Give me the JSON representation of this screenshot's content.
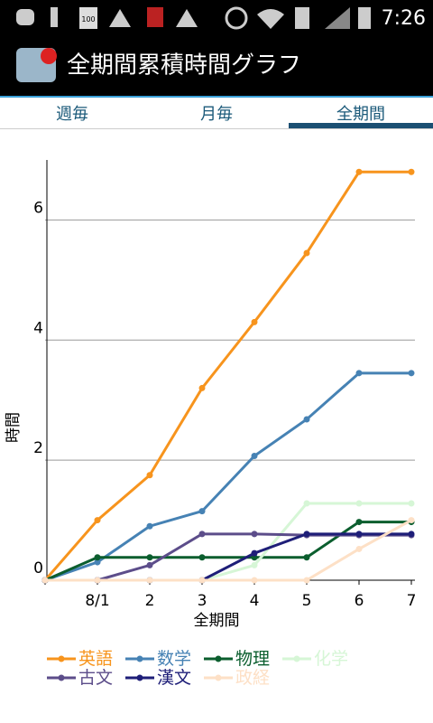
{
  "status": {
    "battery": "100",
    "time": "7:26"
  },
  "app_bar": {
    "title": "全期間累積時間グラフ"
  },
  "tabs": [
    "週毎",
    "月毎",
    "全期間"
  ],
  "chart_data": {
    "type": "line",
    "categories": [
      null,
      "8/1",
      "2",
      "3",
      "4",
      "5",
      "6",
      "7"
    ],
    "xlabel": "全期間",
    "ylabel": "時間",
    "ylim": [
      0,
      7
    ],
    "yticks": [
      0,
      2,
      4,
      6
    ],
    "grid": true,
    "series": [
      {
        "name": "英語",
        "color": "#f7941d",
        "values": [
          0,
          1.0,
          1.75,
          3.2,
          4.3,
          5.45,
          6.8,
          6.8
        ]
      },
      {
        "name": "数学",
        "color": "#4682b4",
        "values": [
          0,
          0.3,
          0.9,
          1.15,
          2.07,
          2.68,
          3.45,
          3.45
        ]
      },
      {
        "name": "物理",
        "color": "#0b5e2e",
        "values": [
          0,
          0.38,
          0.38,
          0.38,
          0.38,
          0.38,
          0.97,
          0.97
        ]
      },
      {
        "name": "化学",
        "color": "#d6f6d6",
        "values": [
          0,
          0,
          0,
          0,
          0.25,
          1.28,
          1.28,
          1.28
        ]
      },
      {
        "name": "古文",
        "color": "#5c4d8a",
        "values": [
          0,
          0,
          0.25,
          0.77,
          0.77,
          0.75,
          0.75,
          0.75
        ]
      },
      {
        "name": "漢文",
        "color": "#1e1e78",
        "values": [
          0,
          0,
          0,
          0,
          0.45,
          0.77,
          0.77,
          0.77
        ]
      },
      {
        "name": "政経",
        "color": "#fde0c6",
        "values": [
          0,
          0,
          0,
          0,
          0,
          0,
          0.52,
          1.0
        ]
      }
    ]
  }
}
